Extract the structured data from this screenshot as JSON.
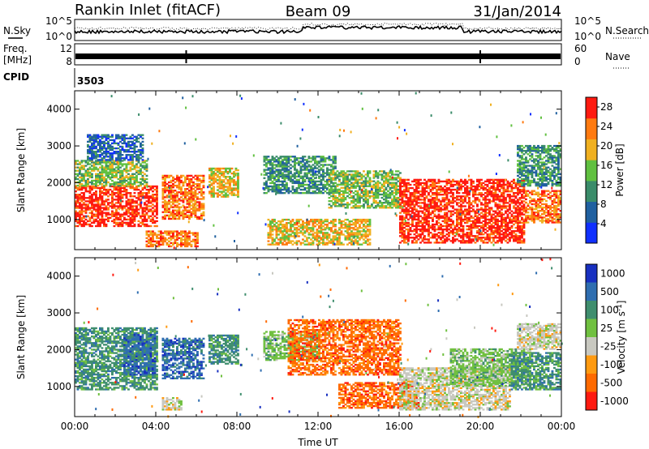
{
  "header": {
    "station": "Rankin Inlet (fitACF)",
    "beam": "Beam 09",
    "date": "31/Jan/2014"
  },
  "status_panels": {
    "nsky_label": "N.Sky",
    "nsearch_label": "N.Search",
    "freq_label_line1": "Freq.",
    "freq_label_line2": "[MHz]",
    "nave_label": "Nave",
    "cpid_label": "CPID",
    "cpid_value": "3503",
    "noise_ticks": [
      "10^5",
      "10^0"
    ],
    "freq_ticks": [
      "12",
      "8"
    ],
    "nave_ticks": [
      "60",
      "0"
    ]
  },
  "chart_data": [
    {
      "type": "heatmap",
      "panel": "power",
      "xlabel": "",
      "ylabel": "Slant Range [km]",
      "x_ticks": [
        "00:00",
        "04:00",
        "08:00",
        "12:00",
        "16:00",
        "20:00",
        "00:00"
      ],
      "x_range_hours": [
        0,
        24
      ],
      "ylim": [
        180,
        4500
      ],
      "y_ticks": [
        1000,
        2000,
        3000,
        4000
      ],
      "colorbar": {
        "label": "Power [dB]",
        "ticks": [
          4,
          8,
          12,
          16,
          20,
          24,
          28
        ],
        "range": [
          0,
          30
        ],
        "colors": [
          "#1030ff",
          "#2060a0",
          "#3a8c6a",
          "#60c040",
          "#f0b020",
          "#ff7a10",
          "#ff1a10"
        ]
      },
      "regions": [
        {
          "t": [
            0.0,
            4.1
          ],
          "r": [
            800,
            1900
          ],
          "level": 6
        },
        {
          "t": [
            0.0,
            3.6
          ],
          "r": [
            1900,
            2600
          ],
          "level": 3
        },
        {
          "t": [
            0.6,
            3.4
          ],
          "r": [
            2600,
            3300
          ],
          "level": 1
        },
        {
          "t": [
            4.3,
            6.3
          ],
          "r": [
            1000,
            2200
          ],
          "level": 5
        },
        {
          "t": [
            6.6,
            8.0
          ],
          "r": [
            1600,
            2400
          ],
          "level": 4
        },
        {
          "t": [
            9.3,
            12.8
          ],
          "r": [
            1700,
            2700
          ],
          "level": 2
        },
        {
          "t": [
            12.5,
            16.0
          ],
          "r": [
            1300,
            2300
          ],
          "level": 3
        },
        {
          "t": [
            3.5,
            6.0
          ],
          "r": [
            250,
            700
          ],
          "level": 5
        },
        {
          "t": [
            9.5,
            14.5
          ],
          "r": [
            300,
            1000
          ],
          "level": 4
        },
        {
          "t": [
            16.0,
            22.2
          ],
          "r": [
            350,
            2100
          ],
          "level": 6
        },
        {
          "t": [
            22.2,
            24.0
          ],
          "r": [
            900,
            1800
          ],
          "level": 5
        },
        {
          "t": [
            21.8,
            24.0
          ],
          "r": [
            1900,
            3000
          ],
          "level": 2
        }
      ]
    },
    {
      "type": "heatmap",
      "panel": "velocity",
      "xlabel": "Time UT",
      "ylabel": "Slant Range [km]",
      "x_ticks": [
        "00:00",
        "04:00",
        "08:00",
        "12:00",
        "16:00",
        "20:00",
        "00:00"
      ],
      "x_range_hours": [
        0,
        24
      ],
      "ylim": [
        180,
        4500
      ],
      "y_ticks": [
        1000,
        2000,
        3000,
        4000
      ],
      "colorbar": {
        "label": "Velocity [m s^-1]",
        "ticks": [
          "1000",
          "500",
          "100",
          "25",
          "-25",
          "-100",
          "-500",
          "-1000"
        ],
        "colors": [
          "#1830c0",
          "#2f6eb0",
          "#3f8e6e",
          "#70c040",
          "#c8c8c0",
          "#ff9a10",
          "#ff6a00",
          "#ff1a10"
        ]
      },
      "regions": [
        {
          "t": [
            0.0,
            4.1
          ],
          "r": [
            900,
            2600
          ],
          "v": 2
        },
        {
          "t": [
            2.4,
            4.0
          ],
          "r": [
            1300,
            2400
          ],
          "v": 1
        },
        {
          "t": [
            4.3,
            6.3
          ],
          "r": [
            1200,
            2300
          ],
          "v": 1
        },
        {
          "t": [
            6.6,
            8.0
          ],
          "r": [
            1600,
            2400
          ],
          "v": 2
        },
        {
          "t": [
            9.3,
            12.0
          ],
          "r": [
            1700,
            2500
          ],
          "v": 3
        },
        {
          "t": [
            10.5,
            16.0
          ],
          "r": [
            1300,
            2800
          ],
          "v": 6
        },
        {
          "t": [
            4.3,
            5.2
          ],
          "r": [
            350,
            700
          ],
          "v": 4
        },
        {
          "t": [
            13.0,
            17.0
          ],
          "r": [
            400,
            1100
          ],
          "v": 6
        },
        {
          "t": [
            16.0,
            21.5
          ],
          "r": [
            350,
            1500
          ],
          "v": 4
        },
        {
          "t": [
            18.5,
            22.5
          ],
          "r": [
            1000,
            2000
          ],
          "v": 3
        },
        {
          "t": [
            21.5,
            24.0
          ],
          "r": [
            900,
            1900
          ],
          "v": 2
        },
        {
          "t": [
            21.8,
            24.0
          ],
          "r": [
            2000,
            2700
          ],
          "v": 4
        }
      ]
    }
  ]
}
